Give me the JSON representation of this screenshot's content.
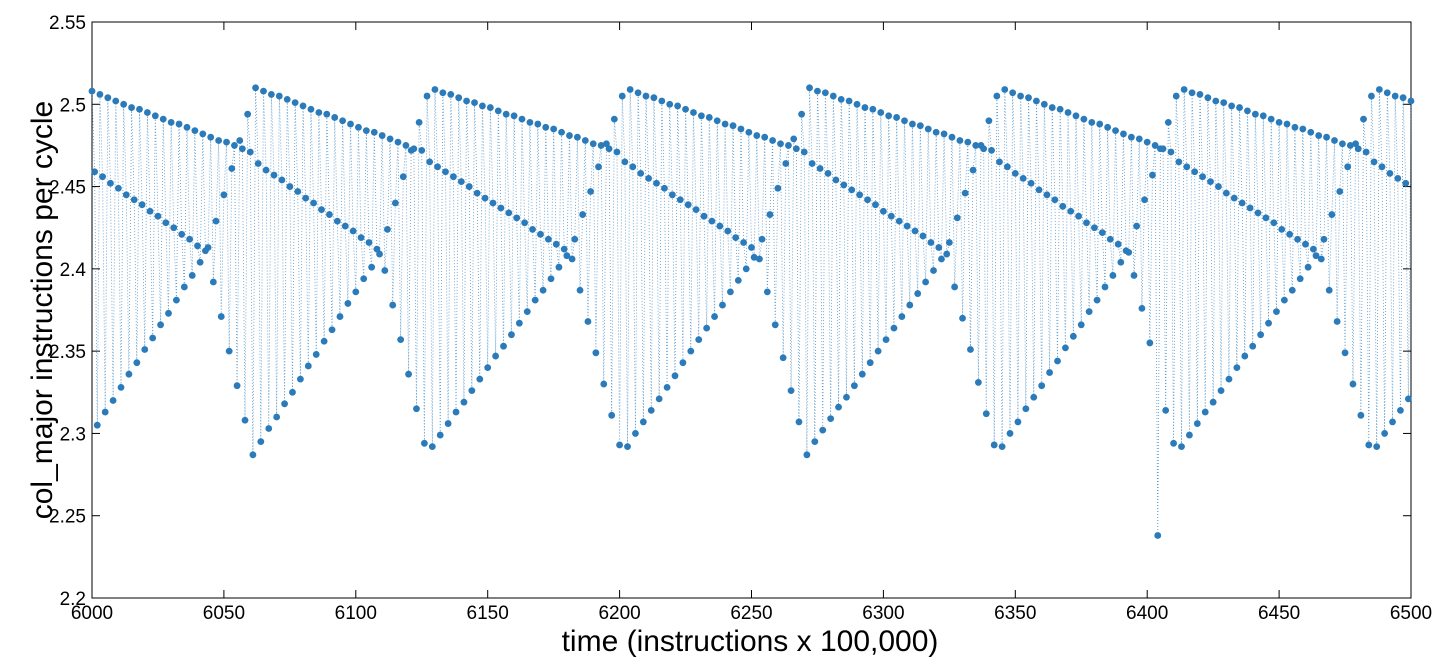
{
  "chart_data": {
    "type": "line",
    "xlabel": "time (instructions x 100,000)",
    "ylabel": "col_major instructions per cycle",
    "color": "#2b7bba",
    "xlim": [
      6000,
      6500
    ],
    "xticks": [
      6000,
      6050,
      6100,
      6150,
      6200,
      6250,
      6300,
      6350,
      6400,
      6450,
      6500
    ],
    "ylim": [
      2.2,
      2.55
    ],
    "yticks": [
      2.2,
      2.25,
      2.3,
      2.35,
      2.4,
      2.45,
      2.5,
      2.55
    ],
    "grid": false,
    "x": [
      6000,
      6001,
      6002,
      6003,
      6004,
      6005,
      6006,
      6007,
      6008,
      6009,
      6010,
      6011,
      6012,
      6013,
      6014,
      6015,
      6016,
      6017,
      6018,
      6019,
      6020,
      6021,
      6022,
      6023,
      6024,
      6025,
      6026,
      6027,
      6028,
      6029,
      6030,
      6031,
      6032,
      6033,
      6034,
      6035,
      6036,
      6037,
      6038,
      6039,
      6040,
      6041,
      6042,
      6043,
      6044,
      6045,
      6046,
      6047,
      6048,
      6049,
      6050,
      6051,
      6052,
      6053,
      6054,
      6055,
      6056,
      6057,
      6058,
      6059,
      6060,
      6061,
      6062,
      6063,
      6064,
      6065,
      6066,
      6067,
      6068,
      6069,
      6070,
      6071,
      6072,
      6073,
      6074,
      6075,
      6076,
      6077,
      6078,
      6079,
      6080,
      6081,
      6082,
      6083,
      6084,
      6085,
      6086,
      6087,
      6088,
      6089,
      6090,
      6091,
      6092,
      6093,
      6094,
      6095,
      6096,
      6097,
      6098,
      6099,
      6100,
      6101,
      6102,
      6103,
      6104,
      6105,
      6106,
      6107,
      6108,
      6109,
      6110,
      6111,
      6112,
      6113,
      6114,
      6115,
      6116,
      6117,
      6118,
      6119,
      6120,
      6121,
      6122,
      6123,
      6124,
      6125,
      6126,
      6127,
      6128,
      6129,
      6130,
      6131,
      6132,
      6133,
      6134,
      6135,
      6136,
      6137,
      6138,
      6139,
      6140,
      6141,
      6142,
      6143,
      6144,
      6145,
      6146,
      6147,
      6148,
      6149,
      6150,
      6151,
      6152,
      6153,
      6154,
      6155,
      6156,
      6157,
      6158,
      6159,
      6160,
      6161,
      6162,
      6163,
      6164,
      6165,
      6166,
      6167,
      6168,
      6169,
      6170,
      6171,
      6172,
      6173,
      6174,
      6175,
      6176,
      6177,
      6178,
      6179,
      6180,
      6181,
      6182,
      6183,
      6184,
      6185,
      6186,
      6187,
      6188,
      6189,
      6190,
      6191,
      6192,
      6193,
      6194,
      6195,
      6196,
      6197,
      6198,
      6199,
      6200,
      6201,
      6202,
      6203,
      6204,
      6205,
      6206,
      6207,
      6208,
      6209,
      6210,
      6211,
      6212,
      6213,
      6214,
      6215,
      6216,
      6217,
      6218,
      6219,
      6220,
      6221,
      6222,
      6223,
      6224,
      6225,
      6226,
      6227,
      6228,
      6229,
      6230,
      6231,
      6232,
      6233,
      6234,
      6235,
      6236,
      6237,
      6238,
      6239,
      6240,
      6241,
      6242,
      6243,
      6244,
      6245,
      6246,
      6247,
      6248,
      6249,
      6250,
      6251,
      6252,
      6253,
      6254,
      6255,
      6256,
      6257,
      6258,
      6259,
      6260,
      6261,
      6262,
      6263,
      6264,
      6265,
      6266,
      6267,
      6268,
      6269,
      6270,
      6271,
      6272,
      6273,
      6274,
      6275,
      6276,
      6277,
      6278,
      6279,
      6280,
      6281,
      6282,
      6283,
      6284,
      6285,
      6286,
      6287,
      6288,
      6289,
      6290,
      6291,
      6292,
      6293,
      6294,
      6295,
      6296,
      6297,
      6298,
      6299,
      6300,
      6301,
      6302,
      6303,
      6304,
      6305,
      6306,
      6307,
      6308,
      6309,
      6310,
      6311,
      6312,
      6313,
      6314,
      6315,
      6316,
      6317,
      6318,
      6319,
      6320,
      6321,
      6322,
      6323,
      6324,
      6325,
      6326,
      6327,
      6328,
      6329,
      6330,
      6331,
      6332,
      6333,
      6334,
      6335,
      6336,
      6337,
      6338,
      6339,
      6340,
      6341,
      6342,
      6343,
      6344,
      6345,
      6346,
      6347,
      6348,
      6349,
      6350,
      6351,
      6352,
      6353,
      6354,
      6355,
      6356,
      6357,
      6358,
      6359,
      6360,
      6361,
      6362,
      6363,
      6364,
      6365,
      6366,
      6367,
      6368,
      6369,
      6370,
      6371,
      6372,
      6373,
      6374,
      6375,
      6376,
      6377,
      6378,
      6379,
      6380,
      6381,
      6382,
      6383,
      6384,
      6385,
      6386,
      6387,
      6388,
      6389,
      6390,
      6391,
      6392,
      6393,
      6394,
      6395,
      6396,
      6397,
      6398,
      6399,
      6400,
      6401,
      6402,
      6403,
      6404,
      6405,
      6406,
      6407,
      6408,
      6409,
      6410,
      6411,
      6412,
      6413,
      6414,
      6415,
      6416,
      6417,
      6418,
      6419,
      6420,
      6421,
      6422,
      6423,
      6424,
      6425,
      6426,
      6427,
      6428,
      6429,
      6430,
      6431,
      6432,
      6433,
      6434,
      6435,
      6436,
      6437,
      6438,
      6439,
      6440,
      6441,
      6442,
      6443,
      6444,
      6445,
      6446,
      6447,
      6448,
      6449,
      6450,
      6451,
      6452,
      6453,
      6454,
      6455,
      6456,
      6457,
      6458,
      6459,
      6460,
      6461,
      6462,
      6463,
      6464,
      6465,
      6466,
      6467,
      6468,
      6469,
      6470,
      6471,
      6472,
      6473,
      6474,
      6475,
      6476,
      6477,
      6478,
      6479,
      6480,
      6481,
      6482,
      6483,
      6484,
      6485,
      6486,
      6487,
      6488,
      6489,
      6490,
      6491,
      6492,
      6493,
      6494,
      6495,
      6496,
      6497,
      6498,
      6499,
      6500
    ],
    "values": [
      2.508,
      2.459,
      2.305,
      2.506,
      2.456,
      2.313,
      2.504,
      2.452,
      2.32,
      2.502,
      2.449,
      2.328,
      2.5,
      2.445,
      2.336,
      2.498,
      2.442,
      2.343,
      2.497,
      2.439,
      2.351,
      2.495,
      2.435,
      2.358,
      2.493,
      2.432,
      2.366,
      2.491,
      2.428,
      2.373,
      2.489,
      2.425,
      2.381,
      2.488,
      2.421,
      2.389,
      2.486,
      2.418,
      2.396,
      2.484,
      2.414,
      2.404,
      2.482,
      2.411,
      2.413,
      2.48,
      2.392,
      2.429,
      2.478,
      2.371,
      2.445,
      2.477,
      2.35,
      2.461,
      2.475,
      2.329,
      2.478,
      2.473,
      2.308,
      2.494,
      2.471,
      2.287,
      2.51,
      2.464,
      2.295,
      2.508,
      2.46,
      2.303,
      2.506,
      2.457,
      2.31,
      2.505,
      2.454,
      2.318,
      2.503,
      2.45,
      2.325,
      2.501,
      2.447,
      2.333,
      2.499,
      2.443,
      2.341,
      2.497,
      2.44,
      2.348,
      2.495,
      2.436,
      2.356,
      2.494,
      2.433,
      2.363,
      2.492,
      2.429,
      2.371,
      2.49,
      2.426,
      2.379,
      2.488,
      2.423,
      2.386,
      2.486,
      2.419,
      2.394,
      2.484,
      2.416,
      2.401,
      2.483,
      2.412,
      2.409,
      2.481,
      2.399,
      2.424,
      2.479,
      2.378,
      2.44,
      2.477,
      2.357,
      2.456,
      2.475,
      2.336,
      2.472,
      2.473,
      2.315,
      2.489,
      2.472,
      2.294,
      2.505,
      2.465,
      2.292,
      2.509,
      2.462,
      2.299,
      2.507,
      2.459,
      2.306,
      2.506,
      2.456,
      2.313,
      2.504,
      2.453,
      2.319,
      2.502,
      2.45,
      2.326,
      2.501,
      2.446,
      2.333,
      2.499,
      2.443,
      2.34,
      2.498,
      2.44,
      2.347,
      2.496,
      2.437,
      2.353,
      2.494,
      2.434,
      2.36,
      2.493,
      2.431,
      2.367,
      2.491,
      2.428,
      2.374,
      2.489,
      2.424,
      2.381,
      2.488,
      2.421,
      2.387,
      2.486,
      2.418,
      2.394,
      2.485,
      2.415,
      2.401,
      2.483,
      2.412,
      2.408,
      2.481,
      2.406,
      2.418,
      2.48,
      2.387,
      2.433,
      2.478,
      2.368,
      2.447,
      2.476,
      2.349,
      2.462,
      2.475,
      2.33,
      2.476,
      2.473,
      2.311,
      2.491,
      2.471,
      2.293,
      2.505,
      2.465,
      2.292,
      2.509,
      2.462,
      2.3,
      2.507,
      2.458,
      2.307,
      2.505,
      2.455,
      2.314,
      2.504,
      2.452,
      2.321,
      2.502,
      2.449,
      2.328,
      2.5,
      2.445,
      2.335,
      2.499,
      2.442,
      2.343,
      2.497,
      2.439,
      2.35,
      2.495,
      2.436,
      2.357,
      2.493,
      2.432,
      2.364,
      2.492,
      2.429,
      2.371,
      2.49,
      2.426,
      2.378,
      2.488,
      2.423,
      2.386,
      2.487,
      2.419,
      2.393,
      2.485,
      2.416,
      2.4,
      2.483,
      2.413,
      2.407,
      2.481,
      2.406,
      2.418,
      2.48,
      2.386,
      2.433,
      2.478,
      2.366,
      2.449,
      2.476,
      2.346,
      2.464,
      2.475,
      2.326,
      2.479,
      2.473,
      2.307,
      2.494,
      2.471,
      2.287,
      2.51,
      2.464,
      2.295,
      2.508,
      2.461,
      2.302,
      2.507,
      2.458,
      2.309,
      2.505,
      2.454,
      2.316,
      2.503,
      2.451,
      2.322,
      2.502,
      2.448,
      2.329,
      2.5,
      2.445,
      2.336,
      2.498,
      2.442,
      2.343,
      2.497,
      2.439,
      2.35,
      2.495,
      2.435,
      2.357,
      2.493,
      2.432,
      2.364,
      2.492,
      2.429,
      2.371,
      2.49,
      2.426,
      2.378,
      2.488,
      2.423,
      2.385,
      2.487,
      2.42,
      2.392,
      2.485,
      2.416,
      2.399,
      2.483,
      2.413,
      2.406,
      2.482,
      2.409,
      2.416,
      2.48,
      2.389,
      2.431,
      2.478,
      2.37,
      2.446,
      2.477,
      2.351,
      2.46,
      2.475,
      2.331,
      2.475,
      2.473,
      2.312,
      2.49,
      2.472,
      2.293,
      2.505,
      2.465,
      2.292,
      2.509,
      2.462,
      2.3,
      2.507,
      2.458,
      2.307,
      2.505,
      2.455,
      2.315,
      2.504,
      2.452,
      2.322,
      2.502,
      2.448,
      2.329,
      2.5,
      2.445,
      2.337,
      2.498,
      2.442,
      2.344,
      2.497,
      2.438,
      2.352,
      2.495,
      2.435,
      2.359,
      2.493,
      2.432,
      2.366,
      2.491,
      2.428,
      2.374,
      2.489,
      2.425,
      2.381,
      2.488,
      2.422,
      2.389,
      2.486,
      2.418,
      2.396,
      2.484,
      2.415,
      2.404,
      2.482,
      2.411,
      2.41,
      2.48,
      2.396,
      2.426,
      2.479,
      2.376,
      2.442,
      2.477,
      2.355,
      2.457,
      2.475,
      2.238,
      2.473,
      2.473,
      2.314,
      2.489,
      2.471,
      2.294,
      2.505,
      2.465,
      2.292,
      2.509,
      2.462,
      2.299,
      2.507,
      2.459,
      2.306,
      2.506,
      2.456,
      2.313,
      2.504,
      2.453,
      2.319,
      2.502,
      2.45,
      2.326,
      2.501,
      2.446,
      2.333,
      2.499,
      2.443,
      2.34,
      2.498,
      2.44,
      2.347,
      2.496,
      2.437,
      2.353,
      2.494,
      2.434,
      2.36,
      2.493,
      2.431,
      2.367,
      2.491,
      2.428,
      2.374,
      2.489,
      2.424,
      2.381,
      2.488,
      2.421,
      2.387,
      2.486,
      2.418,
      2.394,
      2.485,
      2.415,
      2.401,
      2.483,
      2.412,
      2.408,
      2.481,
      2.406,
      2.418,
      2.48,
      2.387,
      2.433,
      2.478,
      2.368,
      2.447,
      2.476,
      2.349,
      2.462,
      2.475,
      2.33,
      2.476,
      2.473,
      2.311,
      2.491,
      2.471,
      2.293,
      2.505,
      2.465,
      2.292,
      2.509,
      2.462,
      2.3,
      2.507,
      2.458,
      2.307,
      2.505,
      2.455,
      2.314,
      2.504,
      2.452,
      2.321,
      2.502
    ]
  }
}
